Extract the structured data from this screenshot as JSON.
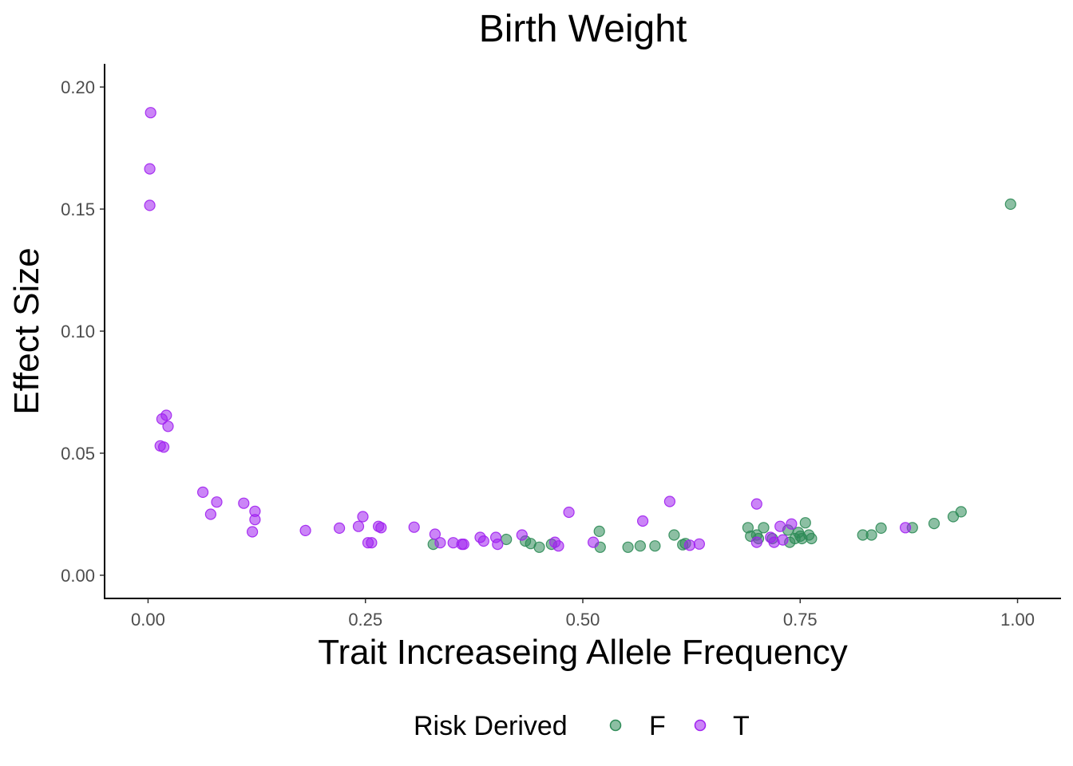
{
  "chart_data": {
    "type": "scatter",
    "title": "Birth Weight",
    "xlabel": "Trait Increaseing Allele Frequency",
    "ylabel": "Effect Size",
    "xlim": [
      -0.05,
      1.05
    ],
    "ylim": [
      -0.0095,
      0.2095
    ],
    "xticks": [
      0.0,
      0.25,
      0.5,
      0.75,
      1.0
    ],
    "xtick_labels": [
      "0.00",
      "0.25",
      "0.50",
      "0.75",
      "1.00"
    ],
    "yticks": [
      0.0,
      0.05,
      0.1,
      0.15,
      0.2
    ],
    "ytick_labels": [
      "0.00",
      "0.05",
      "0.10",
      "0.15",
      "0.20"
    ],
    "grid": false,
    "legend": {
      "title": "Risk Derived",
      "position": "bottom"
    },
    "series": [
      {
        "name": "F",
        "color": "#2e8b57",
        "points": [
          [
            0.328,
            0.0127
          ],
          [
            0.412,
            0.0147
          ],
          [
            0.434,
            0.014
          ],
          [
            0.44,
            0.013
          ],
          [
            0.45,
            0.0115
          ],
          [
            0.464,
            0.0127
          ],
          [
            0.519,
            0.018
          ],
          [
            0.52,
            0.0115
          ],
          [
            0.552,
            0.0115
          ],
          [
            0.566,
            0.012
          ],
          [
            0.583,
            0.012
          ],
          [
            0.605,
            0.0165
          ],
          [
            0.615,
            0.0125
          ],
          [
            0.618,
            0.013
          ],
          [
            0.69,
            0.0195
          ],
          [
            0.693,
            0.016
          ],
          [
            0.7,
            0.0165
          ],
          [
            0.702,
            0.015
          ],
          [
            0.708,
            0.0195
          ],
          [
            0.718,
            0.015
          ],
          [
            0.736,
            0.0185
          ],
          [
            0.738,
            0.0135
          ],
          [
            0.744,
            0.015
          ],
          [
            0.748,
            0.0175
          ],
          [
            0.75,
            0.016
          ],
          [
            0.752,
            0.015
          ],
          [
            0.756,
            0.0215
          ],
          [
            0.76,
            0.0165
          ],
          [
            0.763,
            0.015
          ],
          [
            0.822,
            0.0165
          ],
          [
            0.832,
            0.0165
          ],
          [
            0.843,
            0.0193
          ],
          [
            0.879,
            0.0195
          ],
          [
            0.904,
            0.0212
          ],
          [
            0.926,
            0.024
          ],
          [
            0.935,
            0.026
          ],
          [
            0.992,
            0.152
          ]
        ]
      },
      {
        "name": "T",
        "color": "#a020f0",
        "points": [
          [
            0.003,
            0.1895
          ],
          [
            0.002,
            0.1665
          ],
          [
            0.002,
            0.1515
          ],
          [
            0.021,
            0.0655
          ],
          [
            0.016,
            0.064
          ],
          [
            0.023,
            0.061
          ],
          [
            0.014,
            0.053
          ],
          [
            0.018,
            0.0525
          ],
          [
            0.063,
            0.034
          ],
          [
            0.079,
            0.03
          ],
          [
            0.072,
            0.025
          ],
          [
            0.11,
            0.0295
          ],
          [
            0.123,
            0.0262
          ],
          [
            0.123,
            0.0228
          ],
          [
            0.12,
            0.0178
          ],
          [
            0.181,
            0.0183
          ],
          [
            0.22,
            0.0193
          ],
          [
            0.242,
            0.02
          ],
          [
            0.247,
            0.024
          ],
          [
            0.253,
            0.0133
          ],
          [
            0.257,
            0.0133
          ],
          [
            0.265,
            0.02
          ],
          [
            0.268,
            0.0195
          ],
          [
            0.306,
            0.0197
          ],
          [
            0.33,
            0.0168
          ],
          [
            0.336,
            0.0133
          ],
          [
            0.351,
            0.0133
          ],
          [
            0.361,
            0.0127
          ],
          [
            0.363,
            0.0127
          ],
          [
            0.382,
            0.0155
          ],
          [
            0.386,
            0.014
          ],
          [
            0.4,
            0.0155
          ],
          [
            0.402,
            0.0127
          ],
          [
            0.43,
            0.0165
          ],
          [
            0.468,
            0.0135
          ],
          [
            0.472,
            0.012
          ],
          [
            0.484,
            0.0258
          ],
          [
            0.512,
            0.0135
          ],
          [
            0.569,
            0.0222
          ],
          [
            0.6,
            0.0302
          ],
          [
            0.623,
            0.0123
          ],
          [
            0.634,
            0.0128
          ],
          [
            0.7,
            0.0292
          ],
          [
            0.7,
            0.0135
          ],
          [
            0.716,
            0.0155
          ],
          [
            0.72,
            0.0135
          ],
          [
            0.727,
            0.02
          ],
          [
            0.73,
            0.0145
          ],
          [
            0.74,
            0.021
          ],
          [
            0.871,
            0.0195
          ]
        ]
      }
    ]
  }
}
